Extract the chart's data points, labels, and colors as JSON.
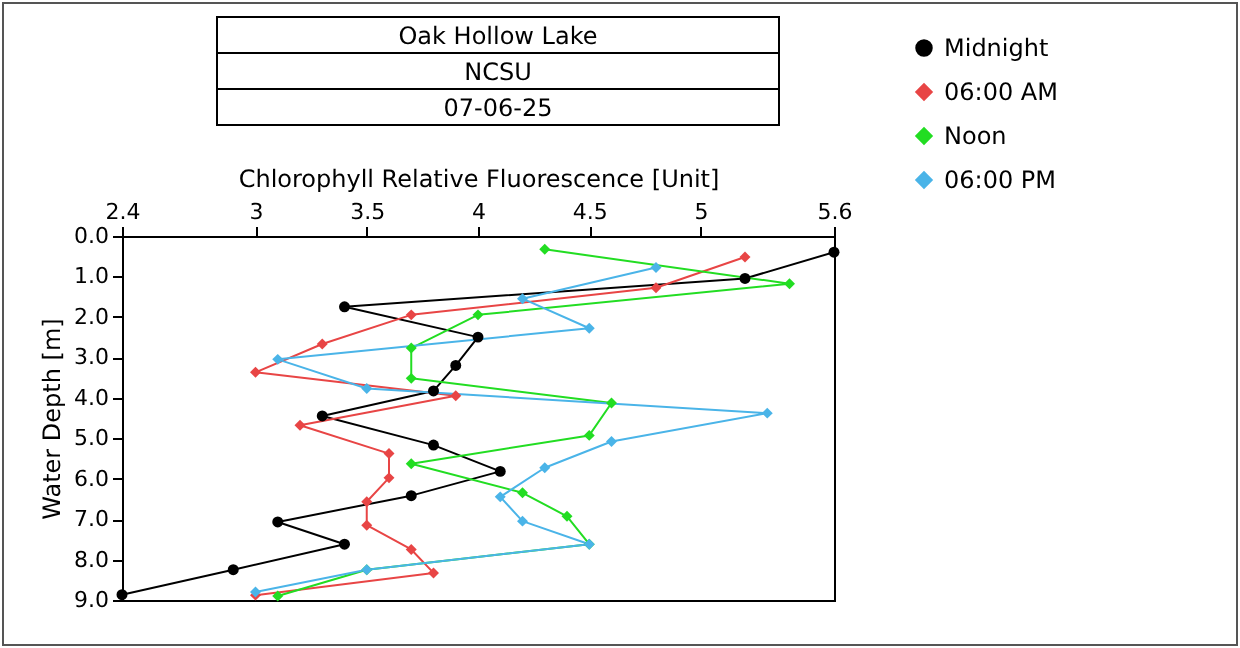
{
  "chart_data": {
    "type": "line",
    "title": "Oak Hollow Lake",
    "subtitle": "NCSU",
    "annotations": [
      "07-06-25"
    ],
    "xlabel": "Chlorophyll Relative Fluorescence [Unit]",
    "ylabel": "Water Depth [m]",
    "xlim": [
      2.4,
      5.6
    ],
    "xticks": [
      2.4,
      3,
      3.5,
      4,
      4.5,
      5,
      5.6
    ],
    "ylim": [
      9,
      0
    ],
    "yticks": [
      {
        "value": 0,
        "label": "0.0"
      },
      {
        "value": 1,
        "label": "1.0"
      },
      {
        "value": 2,
        "label": "2.0"
      },
      {
        "value": 3,
        "label": "3.0"
      },
      {
        "value": 4,
        "label": "4.0"
      },
      {
        "value": 5,
        "label": "5.0"
      },
      {
        "value": 6,
        "label": "6.0"
      },
      {
        "value": 7,
        "label": "7.0"
      },
      {
        "value": 8,
        "label": "8.0"
      },
      {
        "value": 9,
        "label": "9.0"
      }
    ],
    "grid": false,
    "legend": "top right",
    "marker": "diamond",
    "series": [
      {
        "name": "Midnight",
        "color": "#000000",
        "marker": "circle",
        "x": [
          5.6,
          5.2,
          3.4,
          4.0,
          3.9,
          3.8,
          3.3,
          3.8,
          4.1,
          3.7,
          3.1,
          3.4,
          2.9,
          2.4
        ],
        "values": [
          0.4,
          1.05,
          1.75,
          2.5,
          3.2,
          3.83,
          4.45,
          5.17,
          5.82,
          6.42,
          7.07,
          7.62,
          8.25,
          8.87
        ]
      },
      {
        "name": "06:00 AM",
        "color": "#e84545",
        "x": [
          5.2,
          4.8,
          3.7,
          3.3,
          3.0,
          3.9,
          3.2,
          3.6,
          3.6,
          3.5,
          3.5,
          3.7,
          3.8,
          3.0
        ],
        "values": [
          0.52,
          1.28,
          1.95,
          2.67,
          3.37,
          3.95,
          4.68,
          5.38,
          5.98,
          6.57,
          7.15,
          7.75,
          8.33,
          8.88
        ]
      },
      {
        "name": "Noon",
        "color": "#22dd22",
        "x": [
          4.3,
          5.4,
          4.0,
          3.7,
          3.7,
          4.6,
          4.5,
          3.7,
          4.2,
          4.4,
          4.5,
          3.5,
          3.1
        ],
        "values": [
          0.33,
          1.18,
          1.95,
          2.77,
          3.52,
          4.13,
          4.93,
          5.63,
          6.35,
          6.93,
          7.62,
          8.25,
          8.9
        ]
      },
      {
        "name": "06:00 PM",
        "color": "#4ab4e8",
        "x": [
          4.8,
          4.2,
          4.5,
          3.1,
          3.5,
          5.3,
          4.6,
          4.3,
          4.1,
          4.2,
          4.5,
          3.5,
          3.0
        ],
        "values": [
          0.78,
          1.55,
          2.28,
          3.05,
          3.77,
          4.38,
          5.08,
          5.73,
          6.45,
          7.05,
          7.62,
          8.25,
          8.8
        ]
      }
    ]
  }
}
